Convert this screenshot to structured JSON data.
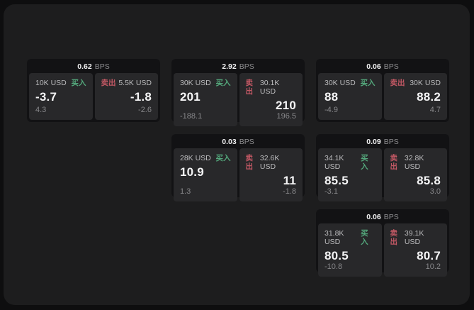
{
  "labels": {
    "buy": "买入",
    "sell": "卖出",
    "bps_unit": "BPS"
  },
  "colors": {
    "buy": "#54a87c",
    "sell": "#c25864",
    "panel": "#1d1d1e",
    "card": "#121214",
    "subpanel": "#28282a"
  },
  "cards": [
    {
      "col": 1,
      "row": 1,
      "bps": "0.62",
      "buy": {
        "size": "10K USD",
        "value": "-3.7",
        "sub": "4.3"
      },
      "sell": {
        "size": "5.5K USD",
        "value": "-1.8",
        "sub": "-2.6"
      }
    },
    {
      "col": 2,
      "row": 1,
      "bps": "2.92",
      "buy": {
        "size": "30K USD",
        "value": "201",
        "sub": "-188.1"
      },
      "sell": {
        "size": "30.1K USD",
        "value": "210",
        "sub": "196.5"
      }
    },
    {
      "col": 3,
      "row": 1,
      "bps": "0.06",
      "buy": {
        "size": "30K USD",
        "value": "88",
        "sub": "-4.9"
      },
      "sell": {
        "size": "30K USD",
        "value": "88.2",
        "sub": "4.7"
      }
    },
    {
      "col": 2,
      "row": 2,
      "bps": "0.03",
      "buy": {
        "size": "28K USD",
        "value": "10.9",
        "sub": "1.3"
      },
      "sell": {
        "size": "32.6K USD",
        "value": "11",
        "sub": "-1.8"
      }
    },
    {
      "col": 3,
      "row": 2,
      "bps": "0.09",
      "buy": {
        "size": "34.1K USD",
        "value": "85.5",
        "sub": "-3.1"
      },
      "sell": {
        "size": "32.8K USD",
        "value": "85.8",
        "sub": "3.0"
      }
    },
    {
      "col": 3,
      "row": 3,
      "bps": "0.06",
      "buy": {
        "size": "31.8K USD",
        "value": "80.5",
        "sub": "-10.8"
      },
      "sell": {
        "size": "39.1K USD",
        "value": "80.7",
        "sub": "10.2"
      }
    }
  ]
}
